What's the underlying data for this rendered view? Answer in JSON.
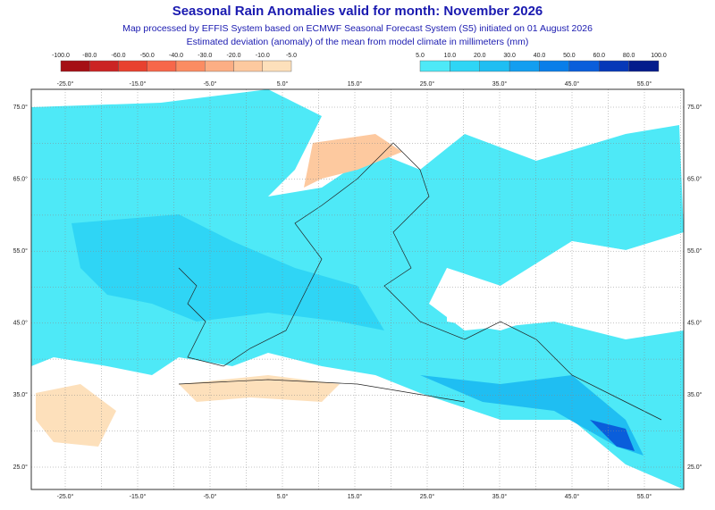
{
  "header": {
    "title": "Seasonal Rain Anomalies valid for month: November 2026",
    "lines": [
      "Map processed by EFFIS System based on ECMWF Seasonal Forecast System (S5) initiated on 01 August 2026",
      "Estimated deviation (anomaly) of the mean from model climate in millimeters (mm)"
    ]
  },
  "legend": {
    "negative": {
      "labels": [
        "-100.0",
        "-80.0",
        "-60.0",
        "-50.0",
        "-40.0",
        "-30.0",
        "-20.0",
        "-10.0",
        "-5.0"
      ],
      "colors": [
        "#a50f15",
        "#cb2424",
        "#e8412f",
        "#f7674a",
        "#fb8c62",
        "#fcae84",
        "#fdc99f",
        "#fde0bb"
      ]
    },
    "positive": {
      "labels": [
        "5.0",
        "10.0",
        "20.0",
        "30.0",
        "40.0",
        "50.0",
        "60.0",
        "80.0",
        "100.0"
      ],
      "colors": [
        "#4ee9f7",
        "#2fd5f5",
        "#1fbef2",
        "#139ef0",
        "#0a7ee9",
        "#0a5edb",
        "#0638b8",
        "#041c8c"
      ]
    }
  },
  "map": {
    "longitude_labels": [
      "-25.0°",
      "-15.0°",
      "-5.0°",
      "5.0°",
      "15.0°",
      "25.0°",
      "35.0°",
      "45.0°",
      "55.0°"
    ],
    "latitude_labels": [
      "75.0°",
      "65.0°",
      "55.0°",
      "45.0°",
      "35.0°",
      "25.0°"
    ]
  }
}
